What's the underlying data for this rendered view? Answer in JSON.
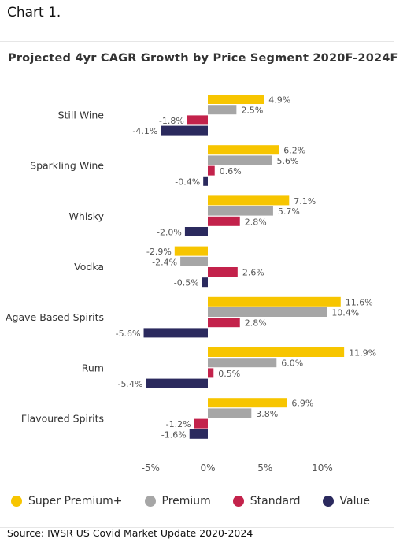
{
  "heading": "Chart 1.",
  "source": "Source: IWSR US Covid Market Update 2020-2024",
  "chart_data": {
    "type": "bar",
    "orientation": "horizontal",
    "title": "Projected 4yr CAGR Growth by Price Segment 2020F-2024F",
    "categories": [
      "Still Wine",
      "Sparkling Wine",
      "Whisky",
      "Vodka",
      "Agave-Based Spirits",
      "Rum",
      "Flavoured Spirits"
    ],
    "series": [
      {
        "name": "Super Premium+",
        "color": "#f7c500",
        "values": [
          4.9,
          6.2,
          7.1,
          -2.9,
          11.6,
          11.9,
          6.9
        ],
        "labels": [
          "4.9%",
          "6.2%",
          "7.1%",
          "-2.9%",
          "11.6%",
          "11.9%",
          "6.9%"
        ]
      },
      {
        "name": "Premium",
        "color": "#a6a6a6",
        "values": [
          2.5,
          5.6,
          5.7,
          -2.4,
          10.4,
          6.0,
          3.8
        ],
        "labels": [
          "2.5%",
          "5.6%",
          "5.7%",
          "-2.4%",
          "10.4%",
          "6.0%",
          "3.8%"
        ]
      },
      {
        "name": "Standard",
        "color": "#c3224b",
        "values": [
          -1.8,
          0.6,
          2.8,
          2.6,
          2.8,
          0.5,
          -1.2
        ],
        "labels": [
          "-1.8%",
          "0.6%",
          "2.8%",
          "2.6%",
          "2.8%",
          "0.5%",
          "-1.2%"
        ]
      },
      {
        "name": "Value",
        "color": "#2b2a5e",
        "values": [
          -4.1,
          -0.4,
          -2.0,
          -0.5,
          -5.6,
          -5.4,
          -1.6
        ],
        "labels": [
          "-4.1%",
          "-0.4%",
          "-2.0%",
          "-0.5%",
          "-5.6%",
          "-5.4%",
          "-1.6%"
        ]
      }
    ],
    "x_ticks": [
      -5,
      0,
      5,
      10
    ],
    "x_tick_labels": [
      "-5%",
      "0%",
      "5%",
      "10%"
    ],
    "xlim": [
      -6.5,
      13
    ],
    "legend_position": "bottom",
    "grid": false
  }
}
